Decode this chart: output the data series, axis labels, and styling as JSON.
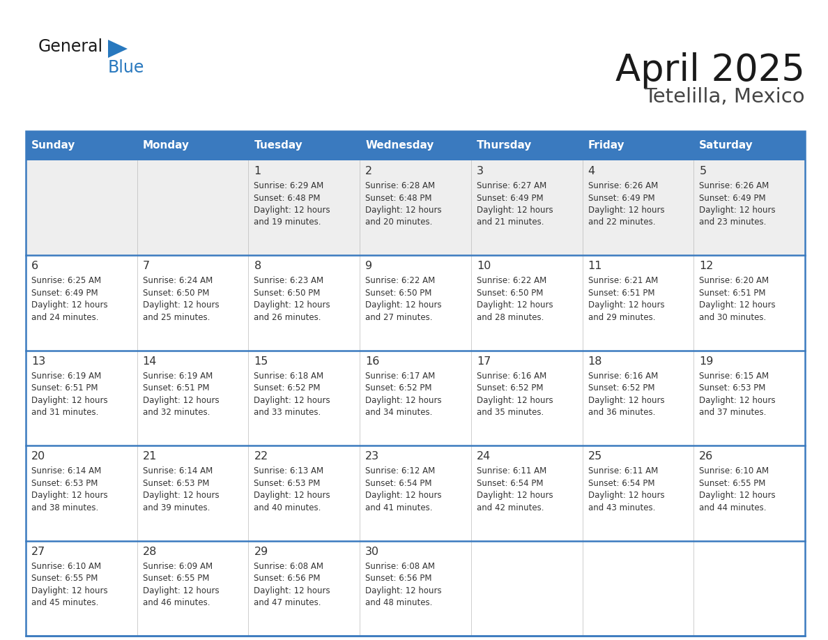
{
  "title": "April 2025",
  "subtitle": "Tetelilla, Mexico",
  "header_bg": "#3a7abf",
  "header_text_color": "#ffffff",
  "row_bg_week1": "#eeeeee",
  "row_bg_other": "#ffffff",
  "cell_text_color": "#333333",
  "border_color": "#3a7abf",
  "sep_color": "#3a7abf",
  "days_of_week": [
    "Sunday",
    "Monday",
    "Tuesday",
    "Wednesday",
    "Thursday",
    "Friday",
    "Saturday"
  ],
  "calendar_data": [
    [
      {
        "day": "",
        "sunrise": "",
        "sunset": "",
        "daylight_min": null
      },
      {
        "day": "",
        "sunrise": "",
        "sunset": "",
        "daylight_min": null
      },
      {
        "day": "1",
        "sunrise": "6:29 AM",
        "sunset": "6:48 PM",
        "daylight_min": 19
      },
      {
        "day": "2",
        "sunrise": "6:28 AM",
        "sunset": "6:48 PM",
        "daylight_min": 20
      },
      {
        "day": "3",
        "sunrise": "6:27 AM",
        "sunset": "6:49 PM",
        "daylight_min": 21
      },
      {
        "day": "4",
        "sunrise": "6:26 AM",
        "sunset": "6:49 PM",
        "daylight_min": 22
      },
      {
        "day": "5",
        "sunrise": "6:26 AM",
        "sunset": "6:49 PM",
        "daylight_min": 23
      }
    ],
    [
      {
        "day": "6",
        "sunrise": "6:25 AM",
        "sunset": "6:49 PM",
        "daylight_min": 24
      },
      {
        "day": "7",
        "sunrise": "6:24 AM",
        "sunset": "6:50 PM",
        "daylight_min": 25
      },
      {
        "day": "8",
        "sunrise": "6:23 AM",
        "sunset": "6:50 PM",
        "daylight_min": 26
      },
      {
        "day": "9",
        "sunrise": "6:22 AM",
        "sunset": "6:50 PM",
        "daylight_min": 27
      },
      {
        "day": "10",
        "sunrise": "6:22 AM",
        "sunset": "6:50 PM",
        "daylight_min": 28
      },
      {
        "day": "11",
        "sunrise": "6:21 AM",
        "sunset": "6:51 PM",
        "daylight_min": 29
      },
      {
        "day": "12",
        "sunrise": "6:20 AM",
        "sunset": "6:51 PM",
        "daylight_min": 30
      }
    ],
    [
      {
        "day": "13",
        "sunrise": "6:19 AM",
        "sunset": "6:51 PM",
        "daylight_min": 31
      },
      {
        "day": "14",
        "sunrise": "6:19 AM",
        "sunset": "6:51 PM",
        "daylight_min": 32
      },
      {
        "day": "15",
        "sunrise": "6:18 AM",
        "sunset": "6:52 PM",
        "daylight_min": 33
      },
      {
        "day": "16",
        "sunrise": "6:17 AM",
        "sunset": "6:52 PM",
        "daylight_min": 34
      },
      {
        "day": "17",
        "sunrise": "6:16 AM",
        "sunset": "6:52 PM",
        "daylight_min": 35
      },
      {
        "day": "18",
        "sunrise": "6:16 AM",
        "sunset": "6:52 PM",
        "daylight_min": 36
      },
      {
        "day": "19",
        "sunrise": "6:15 AM",
        "sunset": "6:53 PM",
        "daylight_min": 37
      }
    ],
    [
      {
        "day": "20",
        "sunrise": "6:14 AM",
        "sunset": "6:53 PM",
        "daylight_min": 38
      },
      {
        "day": "21",
        "sunrise": "6:14 AM",
        "sunset": "6:53 PM",
        "daylight_min": 39
      },
      {
        "day": "22",
        "sunrise": "6:13 AM",
        "sunset": "6:53 PM",
        "daylight_min": 40
      },
      {
        "day": "23",
        "sunrise": "6:12 AM",
        "sunset": "6:54 PM",
        "daylight_min": 41
      },
      {
        "day": "24",
        "sunrise": "6:11 AM",
        "sunset": "6:54 PM",
        "daylight_min": 42
      },
      {
        "day": "25",
        "sunrise": "6:11 AM",
        "sunset": "6:54 PM",
        "daylight_min": 43
      },
      {
        "day": "26",
        "sunrise": "6:10 AM",
        "sunset": "6:55 PM",
        "daylight_min": 44
      }
    ],
    [
      {
        "day": "27",
        "sunrise": "6:10 AM",
        "sunset": "6:55 PM",
        "daylight_min": 45
      },
      {
        "day": "28",
        "sunrise": "6:09 AM",
        "sunset": "6:55 PM",
        "daylight_min": 46
      },
      {
        "day": "29",
        "sunrise": "6:08 AM",
        "sunset": "6:56 PM",
        "daylight_min": 47
      },
      {
        "day": "30",
        "sunrise": "6:08 AM",
        "sunset": "6:56 PM",
        "daylight_min": 48
      },
      {
        "day": "",
        "sunrise": "",
        "sunset": "",
        "daylight_min": null
      },
      {
        "day": "",
        "sunrise": "",
        "sunset": "",
        "daylight_min": null
      },
      {
        "day": "",
        "sunrise": "",
        "sunset": "",
        "daylight_min": null
      }
    ]
  ],
  "logo_text1": "General",
  "logo_text2": "Blue",
  "logo_color1": "#1a1a1a",
  "logo_color2": "#2878be",
  "logo_triangle_color": "#2878be"
}
